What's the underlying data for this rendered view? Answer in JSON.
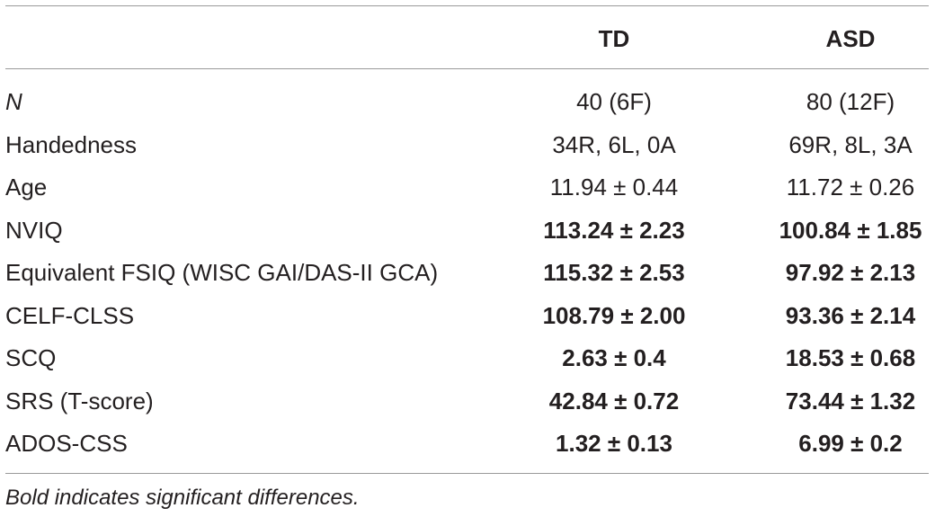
{
  "table": {
    "headers": [
      "",
      "TD",
      "ASD"
    ],
    "rows": [
      {
        "label": "N",
        "td": "40 (6F)",
        "asd": "80 (12F)"
      },
      {
        "label": "Handedness",
        "td": "34R, 6L, 0A",
        "asd": "69R, 8L, 3A"
      },
      {
        "label": "Age",
        "td": "11.94 ± 0.44",
        "asd": "11.72 ± 0.26"
      },
      {
        "label": "NVIQ",
        "td": "113.24 ± 2.23",
        "asd": "100.84 ± 1.85"
      },
      {
        "label": "Equivalent FSIQ (WISC GAI/DAS-II GCA)",
        "td": "115.32 ± 2.53",
        "asd": "97.92 ± 2.13"
      },
      {
        "label": "CELF-CLSS",
        "td": "108.79 ± 2.00",
        "asd": "93.36 ± 2.14"
      },
      {
        "label": "SCQ",
        "td": "2.63 ± 0.4",
        "asd": "18.53 ± 0.68"
      },
      {
        "label": "SRS (T-score)",
        "td": "42.84 ± 0.72",
        "asd": "73.44 ± 1.32"
      },
      {
        "label": "ADOS-CSS",
        "td": "1.32 ± 0.13",
        "asd": "6.99 ± 0.2"
      }
    ],
    "footnote": "Bold indicates significant differences."
  }
}
